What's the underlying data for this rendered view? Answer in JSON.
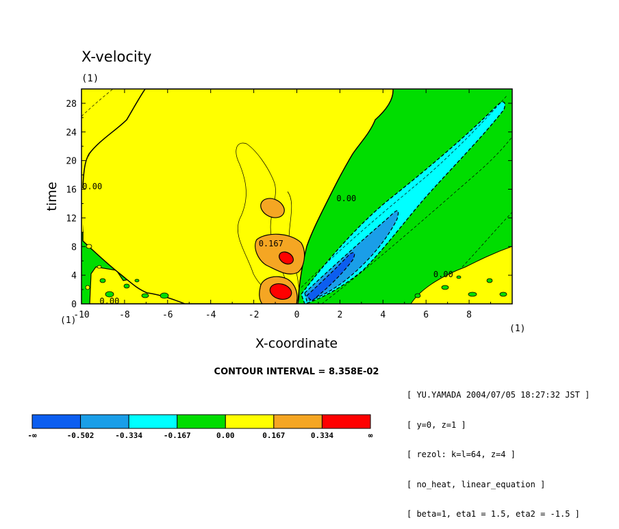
{
  "chart_data": {
    "type": "heatmap",
    "title": "X-velocity",
    "title_unit": "(1)",
    "xlabel": "X-coordinate",
    "ylabel": "time",
    "x_unit": "(1)",
    "y_unit": "(1)",
    "xlim": [
      -10,
      10
    ],
    "ylim": [
      0,
      30
    ],
    "x_ticks": [
      -10,
      -8,
      -6,
      -4,
      -2,
      0,
      2,
      4,
      6,
      8
    ],
    "x_tick_labels": [
      "-10",
      "-8",
      "-6",
      "-4",
      "-2",
      "0",
      "2",
      "4",
      "6",
      "8"
    ],
    "y_ticks": [
      0,
      4,
      8,
      12,
      16,
      20,
      24,
      28
    ],
    "y_tick_labels": [
      "0",
      "4",
      "8",
      "12",
      "16",
      "20",
      "24",
      "28"
    ],
    "contour_interval_text": "CONTOUR INTERVAL = 8.358E-02",
    "contour_labels": [
      {
        "text": "0.00",
        "x": -9.5,
        "y": 16.5
      },
      {
        "text": "0.00",
        "x": 2.3,
        "y": 14.8
      },
      {
        "text": "0.00",
        "x": 6.8,
        "y": 4.2
      },
      {
        "text": "0.167",
        "x": -1.2,
        "y": 8.5
      },
      {
        "text": "0.00",
        "x": -8.7,
        "y": 0.5
      }
    ],
    "colorbar": {
      "levels": [
        "-∞",
        "-0.502",
        "-0.334",
        "-0.167",
        "0.00",
        "0.167",
        "0.334",
        "∞"
      ],
      "colors": [
        "#0c5ef0",
        "#1a9ee8",
        "#00ffff",
        "#00dd00",
        "#ffff00",
        "#f5a623",
        "#ff0000"
      ]
    },
    "regions": {
      "background_color": "#00dd00",
      "positive_lobe": {
        "color": "#ffff00",
        "x_range": [
          -9.5,
          4.5
        ],
        "t_range": [
          0,
          30
        ]
      },
      "orange_blobs": [
        {
          "x": -0.9,
          "t": 1.5,
          "value": 0.3
        },
        {
          "x": -0.8,
          "t": 7,
          "value": 0.25
        },
        {
          "x": -1.1,
          "t": 13.8,
          "value": 0.2
        }
      ],
      "red_blobs": [
        {
          "x": -0.7,
          "t": 1.5,
          "value": 0.4
        },
        {
          "x": -0.5,
          "t": 6.5,
          "value": 0.36
        }
      ],
      "negative_beam": {
        "from": [
          0.2,
          0.3
        ],
        "to": [
          9.5,
          29
        ],
        "min_value": -0.55
      }
    }
  },
  "info": {
    "line1": "[ YU.YAMADA 2004/07/05 18:27:32 JST ]",
    "line2": "[ y=0, z=1 ]",
    "line3": "[ rezol: k=l=64, z=4 ]",
    "line4": "[ no_heat, linear_equation ]",
    "line5": "[ beta=1, eta1 = 1.5, eta2 = -1.5 ]"
  }
}
